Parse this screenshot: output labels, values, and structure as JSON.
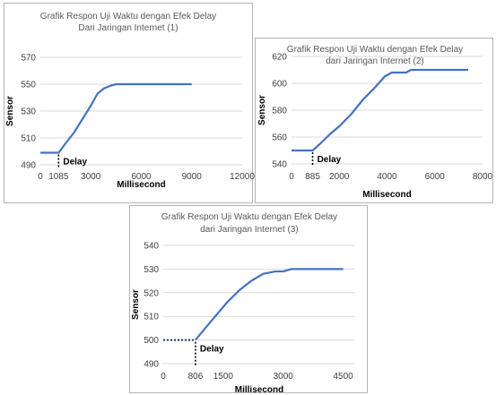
{
  "chart_data": [
    {
      "type": "line",
      "title": "Grafik Respon Uji Waktu dengan Efek Delay",
      "subtitle": "Dari Jaringan Internet (1)",
      "xlabel": "Millisecond",
      "ylabel": "Sensor",
      "xlim": [
        0,
        12000
      ],
      "ylim": [
        490,
        570
      ],
      "xticks": [
        0,
        1085,
        3000,
        6000,
        9000,
        12000
      ],
      "xtick_labels": [
        "0",
        "1085",
        "3000",
        "6000",
        "9000",
        "12000"
      ],
      "yticks": [
        490,
        510,
        530,
        550,
        570
      ],
      "ytick_labels": [
        "490",
        "510",
        "530",
        "550",
        "570"
      ],
      "grid": true,
      "annotation": "Delay",
      "delay_x": 1085,
      "series": [
        {
          "color": "#4472c4",
          "x": [
            0,
            1085,
            1500,
            2000,
            2500,
            3000,
            3400,
            3800,
            4200,
            4500,
            9000
          ],
          "y": [
            499,
            499,
            506,
            514,
            524,
            534,
            543,
            547,
            549,
            550,
            550
          ]
        }
      ]
    },
    {
      "type": "line",
      "title": "Grafik Respon Uji Waktu dengan Efek Delay",
      "subtitle": "dari Jaringan Internet (2)",
      "xlabel": "Millisecond",
      "ylabel": "Sensor",
      "xlim": [
        0,
        8000
      ],
      "ylim": [
        540,
        620
      ],
      "xticks": [
        0,
        885,
        2000,
        4000,
        6000,
        8000
      ],
      "xtick_labels": [
        "0",
        "885",
        "2000",
        "4000",
        "6000",
        "8000"
      ],
      "yticks": [
        540,
        560,
        580,
        600,
        620
      ],
      "ytick_labels": [
        "540",
        "560",
        "580",
        "600",
        "620"
      ],
      "grid": true,
      "annotation": "Delay",
      "delay_x": 885,
      "series": [
        {
          "color": "#4472c4",
          "x": [
            0,
            885,
            1200,
            1600,
            2000,
            2500,
            3000,
            3500,
            3900,
            4200,
            4800,
            5000,
            7400
          ],
          "y": [
            550,
            550,
            555,
            562,
            568,
            577,
            588,
            597,
            605,
            608,
            608,
            610,
            610
          ]
        }
      ]
    },
    {
      "type": "line",
      "title": "Grafik Respon Uji Waktu dengan Efek Delay",
      "subtitle": "dari Jaringan Internet (3)",
      "xlabel": "Millisecond",
      "ylabel": "Sensor",
      "xlim": [
        0,
        4800
      ],
      "ylim": [
        490,
        540
      ],
      "xticks": [
        0,
        806,
        1500,
        3000,
        4500
      ],
      "xtick_labels": [
        "0",
        "806",
        "1500",
        "3000",
        "4500"
      ],
      "yticks": [
        490,
        500,
        510,
        520,
        530,
        540
      ],
      "ytick_labels": [
        "490",
        "500",
        "510",
        "520",
        "530",
        "540"
      ],
      "grid": true,
      "annotation": "Delay",
      "delay_x": 806,
      "series": [
        {
          "color": "#4472c4",
          "x": [
            0,
            806,
            1000,
            1300,
            1600,
            1900,
            2200,
            2500,
            2800,
            3000,
            3200,
            4500
          ],
          "y": [
            500,
            500,
            504,
            510,
            516,
            521,
            525,
            528,
            529,
            529,
            530,
            530
          ]
        }
      ]
    }
  ]
}
